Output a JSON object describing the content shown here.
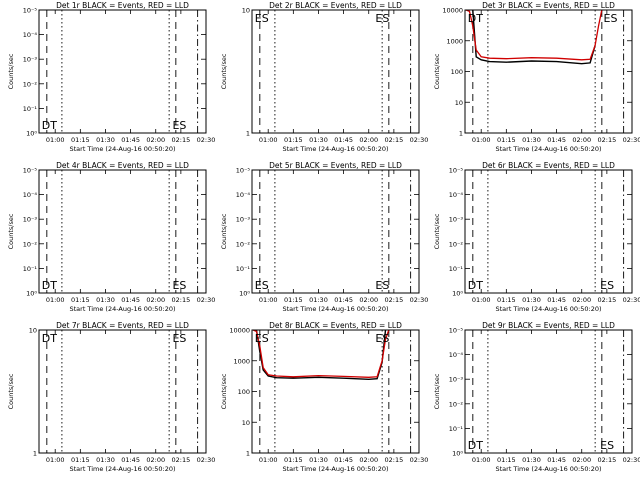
{
  "figure": {
    "xlabel": "Start Time (24-Aug-16 00:50:20)",
    "ylabel": "Counts/sec",
    "xtick_labels": [
      "01:00",
      "01:15",
      "01:30",
      "01:45",
      "02:00",
      "02:15",
      "02:30"
    ]
  },
  "colors": {
    "events": "#000000",
    "lld": "#d00000"
  },
  "chart_data": [
    {
      "type": "line",
      "title": "Det 1r BLACK = Events, RED = LLD",
      "yscale": "log",
      "ylim": [
        1,
        10
      ],
      "ytick_labels": [
        "10⁰",
        "10⁻¹",
        "10⁻²",
        "10⁻³",
        "10⁻⁴",
        "10⁻⁵"
      ],
      "annotations": [
        {
          "text": "DT",
          "x": "00:52"
        },
        {
          "text": "ES",
          "x": "02:10"
        }
      ],
      "series": []
    },
    {
      "type": "line",
      "title": "Det 2r BLACK = Events, RED = LLD",
      "yscale": "log",
      "ylim": [
        1,
        10
      ],
      "ytick_labels": [
        "1",
        "10"
      ],
      "annotations": [
        {
          "text": "ES",
          "x": "00:52"
        },
        {
          "text": "ES",
          "x": "02:04"
        }
      ],
      "series": []
    },
    {
      "type": "line",
      "title": "Det 3r BLACK = Events, RED = LLD",
      "yscale": "log",
      "ylim": [
        1,
        10000
      ],
      "ytick_labels": [
        "1",
        "10",
        "100",
        "1000",
        "10000"
      ],
      "annotations": [
        {
          "text": "DT",
          "x": "00:52"
        },
        {
          "text": "ES",
          "x": "02:13"
        }
      ],
      "series": [
        {
          "name": "Events",
          "color": "black",
          "x": [
            "00:55",
            "00:57",
            "01:00",
            "01:05",
            "01:15",
            "01:30",
            "01:45",
            "02:00",
            "02:05",
            "02:08"
          ],
          "y": [
            10000,
            300,
            240,
            210,
            200,
            220,
            210,
            180,
            190,
            700
          ]
        },
        {
          "name": "LLD",
          "color": "red",
          "x": [
            "00:51",
            "00:53",
            "00:55",
            "00:57",
            "01:00",
            "01:05",
            "01:15",
            "01:30",
            "01:45",
            "02:00",
            "02:05",
            "02:08",
            "02:10",
            "02:12"
          ],
          "y": [
            10000,
            9000,
            3000,
            500,
            300,
            270,
            260,
            280,
            270,
            240,
            250,
            700,
            3000,
            10000
          ]
        }
      ]
    },
    {
      "type": "line",
      "title": "Det 4r BLACK = Events, RED = LLD",
      "yscale": "log",
      "ylim": [
        1,
        10
      ],
      "ytick_labels": [
        "10⁰",
        "10⁻¹",
        "10⁻²",
        "10⁻³",
        "10⁻⁴",
        "10⁻⁵"
      ],
      "annotations": [
        {
          "text": "DT",
          "x": "00:52"
        },
        {
          "text": "ES",
          "x": "02:10"
        }
      ],
      "series": []
    },
    {
      "type": "line",
      "title": "Det 5r BLACK = Events, RED = LLD",
      "yscale": "log",
      "ylim": [
        1,
        10
      ],
      "ytick_labels": [
        "10⁰",
        "10⁻¹",
        "10⁻²",
        "10⁻³",
        "10⁻⁴",
        "10⁻⁵"
      ],
      "annotations": [
        {
          "text": "ES",
          "x": "00:52"
        },
        {
          "text": "ES",
          "x": "02:04"
        }
      ],
      "series": []
    },
    {
      "type": "line",
      "title": "Det 6r BLACK = Events, RED = LLD",
      "yscale": "log",
      "ylim": [
        1,
        10
      ],
      "ytick_labels": [
        "10⁰",
        "10⁻¹",
        "10⁻²",
        "10⁻³",
        "10⁻⁴",
        "10⁻⁵"
      ],
      "annotations": [
        {
          "text": "DT",
          "x": "00:52"
        },
        {
          "text": "ES",
          "x": "02:11"
        }
      ],
      "series": []
    },
    {
      "type": "line",
      "title": "Det 7r BLACK = Events, RED = LLD",
      "yscale": "log",
      "ylim": [
        1,
        10
      ],
      "ytick_labels": [
        "1",
        "10"
      ],
      "annotations": [
        {
          "text": "DT",
          "x": "00:52"
        },
        {
          "text": "ES",
          "x": "02:10"
        }
      ],
      "series": []
    },
    {
      "type": "line",
      "title": "Det 8r BLACK = Events, RED = LLD",
      "yscale": "log",
      "ylim": [
        1,
        10000
      ],
      "ytick_labels": [
        "1",
        "10",
        "100",
        "1000",
        "10000"
      ],
      "annotations": [
        {
          "text": "ES",
          "x": "00:52"
        },
        {
          "text": "ES",
          "x": "02:04"
        }
      ],
      "series": [
        {
          "name": "Events",
          "color": "black",
          "x": [
            "00:53",
            "00:55",
            "00:57",
            "01:00",
            "01:05",
            "01:15",
            "01:30",
            "01:45",
            "02:00",
            "02:05",
            "02:08",
            "02:10"
          ],
          "y": [
            10000,
            2000,
            500,
            320,
            280,
            270,
            290,
            270,
            250,
            260,
            900,
            10000
          ]
        },
        {
          "name": "LLD",
          "color": "red",
          "x": [
            "00:51",
            "00:53",
            "00:55",
            "00:57",
            "01:00",
            "01:05",
            "01:15",
            "01:30",
            "01:45",
            "02:00",
            "02:05",
            "02:08",
            "02:10",
            "02:12"
          ],
          "y": [
            10000,
            9000,
            3000,
            600,
            350,
            320,
            300,
            330,
            310,
            290,
            300,
            1000,
            5000,
            10000
          ]
        }
      ]
    },
    {
      "type": "line",
      "title": "Det 9r BLACK = Events, RED = LLD",
      "yscale": "log",
      "ylim": [
        1,
        10
      ],
      "ytick_labels": [
        "10⁰",
        "10⁻¹",
        "10⁻²",
        "10⁻³",
        "10⁻⁴",
        "10⁻⁵"
      ],
      "annotations": [
        {
          "text": "DT",
          "x": "00:52"
        },
        {
          "text": "ES",
          "x": "02:11"
        }
      ],
      "series": []
    }
  ]
}
